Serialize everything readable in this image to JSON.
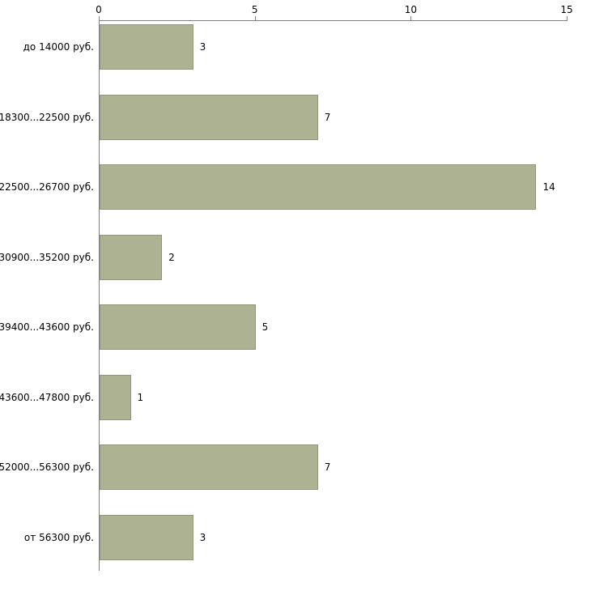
{
  "chart_data": {
    "type": "bar",
    "orientation": "horizontal",
    "title": "",
    "categories": [
      "до 14000 руб.",
      "18300...22500 руб.",
      "22500...26700 руб.",
      "30900...35200 руб.",
      "39400...43600 руб.",
      "43600...47800 руб.",
      "52000...56300 руб.",
      "от 56300 руб."
    ],
    "values": [
      3,
      7,
      14,
      2,
      5,
      1,
      7,
      3
    ],
    "xlim": [
      0,
      15
    ],
    "xticks": [
      0,
      5,
      10,
      15
    ],
    "grid": false,
    "legend": false,
    "colors": {
      "bar_fill": "#adb293",
      "bar_border": "#8e967a",
      "axis": "#808080",
      "text": "#000000",
      "background": "#ffffff"
    }
  }
}
